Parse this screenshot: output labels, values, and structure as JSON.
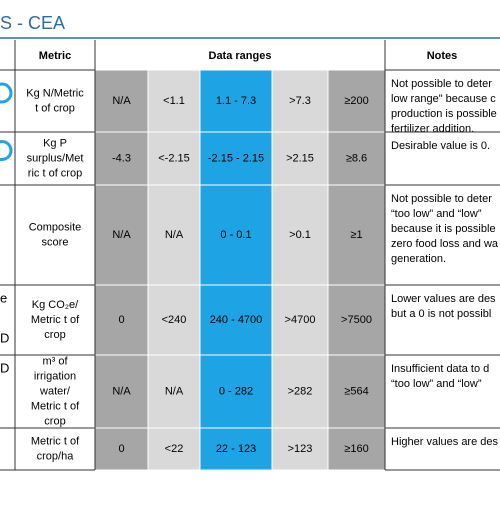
{
  "title": "S - CEA",
  "header": {
    "metric": "Metric",
    "ranges": "Data ranges",
    "notes": "Notes"
  },
  "rows": [
    {
      "left": [],
      "metric": [
        "Kg N/Metric",
        "t of crop"
      ],
      "ranges": [
        "N/A",
        "<1.1",
        "1.1 - 7.3",
        ">7.3",
        "≥200"
      ],
      "notes": [
        "Not possible to deter",
        "low range\" because c",
        "production is possible",
        "fertilizer addition."
      ]
    },
    {
      "left": [],
      "metric": [
        "Kg P",
        "surplus/Met",
        "ric t of crop"
      ],
      "ranges": [
        "-4.3",
        "<-2.15",
        "-2.15 - 2.15",
        ">2.15",
        "≥8.6"
      ],
      "notes": [
        "Desirable value is 0."
      ]
    },
    {
      "left": [],
      "metric": [
        "Composite",
        "score"
      ],
      "ranges": [
        "N/A",
        "N/A",
        "0 - 0.1",
        ">0.1",
        "≥1"
      ],
      "notes": [
        "Not possible to deter",
        "“too low” and “low”",
        "because it is possible",
        "zero food loss and wa",
        "generation."
      ]
    },
    {
      "left": [
        "e",
        "D"
      ],
      "metric": [
        "Kg CO₂e/",
        "Metric t of",
        "crop"
      ],
      "ranges": [
        "0",
        "<240",
        "240 - 4700",
        ">4700",
        ">7500"
      ],
      "notes": [
        "Lower values are des",
        "but a 0 is not possibl"
      ]
    },
    {
      "left": [
        "D"
      ],
      "metric": [
        "m³ of",
        "irrigation",
        "water/",
        "Metric t of",
        "crop"
      ],
      "ranges": [
        "N/A",
        "N/A",
        "0 - 282",
        ">282",
        "≥564"
      ],
      "notes": [
        "Insufficient data to d",
        "“too low” and “low”"
      ]
    },
    {
      "left": [],
      "metric": [
        "Metric t of",
        "crop/ha"
      ],
      "ranges": [
        "0",
        "<22",
        "22 - 123",
        ">123",
        "≥160"
      ],
      "notes": [
        "Higher values are des"
      ]
    }
  ]
}
